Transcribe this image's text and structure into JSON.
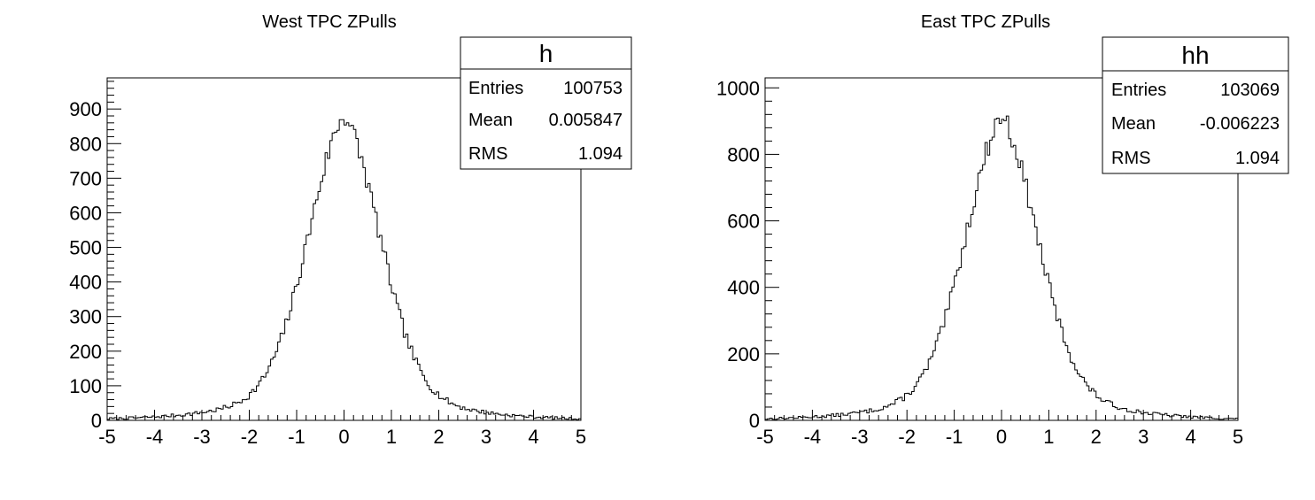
{
  "chart_data": [
    {
      "type": "histogram",
      "title": "West TPC ZPulls",
      "xlabel": "",
      "ylabel": "",
      "xlim": [
        -5,
        5
      ],
      "ylim": [
        0,
        990
      ],
      "x_ticks": [
        "-5",
        "-4",
        "-3",
        "-2",
        "-1",
        "0",
        "1",
        "2",
        "3",
        "4",
        "5"
      ],
      "y_ticks": [
        "0",
        "100",
        "200",
        "300",
        "400",
        "500",
        "600",
        "700",
        "800",
        "900"
      ],
      "y_tick_values": [
        0,
        100,
        200,
        300,
        400,
        500,
        600,
        700,
        800,
        900
      ],
      "bins": 200,
      "peak": 885,
      "shape_sigma": 0.78,
      "noise_seed": 7,
      "stats": {
        "name": "h",
        "rows": [
          {
            "label": "Entries",
            "value": "100753"
          },
          {
            "label": "Mean",
            "value": "0.005847"
          },
          {
            "label": "RMS",
            "value": "1.094"
          }
        ]
      }
    },
    {
      "type": "histogram",
      "title": "East TPC ZPulls",
      "xlabel": "",
      "ylabel": "",
      "xlim": [
        -5,
        5
      ],
      "ylim": [
        0,
        1030
      ],
      "x_ticks": [
        "-5",
        "-4",
        "-3",
        "-2",
        "-1",
        "0",
        "1",
        "2",
        "3",
        "4",
        "5"
      ],
      "y_ticks": [
        "0",
        "200",
        "400",
        "600",
        "800",
        "1000"
      ],
      "y_tick_values": [
        0,
        200,
        400,
        600,
        800,
        1000
      ],
      "bins": 200,
      "peak": 920,
      "shape_sigma": 0.78,
      "noise_seed": 13,
      "stats": {
        "name": "hh",
        "rows": [
          {
            "label": "Entries",
            "value": "103069"
          },
          {
            "label": "Mean",
            "value": "-0.006223"
          },
          {
            "label": "RMS",
            "value": "1.094"
          }
        ]
      }
    }
  ]
}
